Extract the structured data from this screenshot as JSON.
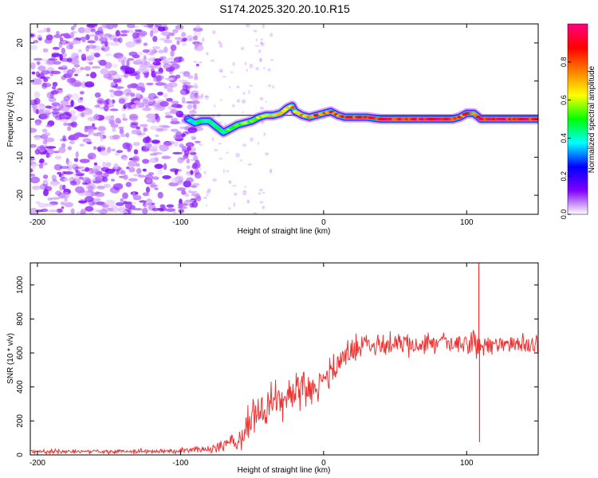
{
  "title": "S174.2025.320.20.10.R15",
  "chart_data": [
    {
      "type": "heatmap",
      "xlabel": "Height of straight line (km)",
      "ylabel": "Frequency (Hz)",
      "xlim": [
        -205,
        150
      ],
      "ylim": [
        -25,
        25
      ],
      "xticks": [
        -200,
        -100,
        0,
        100
      ],
      "yticks": [
        -20,
        -10,
        0,
        10,
        20
      ],
      "colorbar": {
        "label": "Normalized spectral amplitude",
        "range": [
          0.0,
          1.0
        ],
        "ticks": [
          0.0,
          0.2,
          0.4,
          0.6,
          0.8
        ],
        "tick_labels": [
          "0.0",
          "0.2",
          "0.4",
          "0.6",
          "0.8"
        ],
        "stops": [
          "#ffffff",
          "#8000ff",
          "#0000ff",
          "#00ffff",
          "#00ff00",
          "#ffff00",
          "#ff8000",
          "#ff0000",
          "#ff0080"
        ]
      },
      "noise_region_x": [
        -205,
        -95
      ],
      "ridge": {
        "x": [
          -95,
          -90,
          -85,
          -80,
          -75,
          -70,
          -65,
          -60,
          -55,
          -50,
          -45,
          -40,
          -35,
          -30,
          -25,
          -22,
          -20,
          -15,
          -10,
          -5,
          0,
          5,
          10,
          15,
          20,
          30,
          40,
          50,
          60,
          70,
          80,
          90,
          95,
          100,
          105,
          110,
          120,
          130,
          140,
          150
        ],
        "freq": [
          0.0,
          -1.0,
          -0.5,
          -0.5,
          -2.0,
          -3.5,
          -2.5,
          -1.5,
          -1.0,
          -0.5,
          0.5,
          1.0,
          1.0,
          1.5,
          3.0,
          3.5,
          2.0,
          1.0,
          0.5,
          1.0,
          1.5,
          2.0,
          1.0,
          0.5,
          0.5,
          0.5,
          0.0,
          0.0,
          0.0,
          0.0,
          0.0,
          0.0,
          0.5,
          1.5,
          1.5,
          0.0,
          0.0,
          0.0,
          0.0,
          0.0
        ],
        "amplitude": [
          0.35,
          0.45,
          0.5,
          0.45,
          0.45,
          0.5,
          0.55,
          0.55,
          0.6,
          0.6,
          0.65,
          0.65,
          0.7,
          0.7,
          0.75,
          0.8,
          0.75,
          0.8,
          0.8,
          0.85,
          0.85,
          0.85,
          0.85,
          0.9,
          0.9,
          0.9,
          0.95,
          0.95,
          0.95,
          0.95,
          0.95,
          0.95,
          0.9,
          0.85,
          0.85,
          0.95,
          0.95,
          0.95,
          0.95,
          0.95
        ]
      },
      "reference_line_freq": 1.0
    },
    {
      "type": "line",
      "xlabel": "Height of straight line (km)",
      "ylabel": "SNR (10 * v/v)",
      "xlim": [
        -205,
        150
      ],
      "ylim": [
        0,
        1130
      ],
      "xticks": [
        -200,
        -100,
        0,
        100
      ],
      "yticks": [
        0,
        200,
        400,
        600,
        800,
        1000
      ],
      "series": [
        {
          "name": "SNR",
          "color": "#ee3333",
          "x": [
            -205,
            -150,
            -100,
            -80,
            -70,
            -65,
            -60,
            -55,
            -50,
            -40,
            -30,
            -20,
            -10,
            0,
            10,
            20,
            30,
            40,
            50,
            60,
            70,
            80,
            90,
            100,
            105,
            108,
            109,
            110,
            115,
            120,
            130,
            140,
            150
          ],
          "mean": [
            20,
            20,
            25,
            35,
            60,
            100,
            60,
            150,
            230,
            280,
            320,
            360,
            400,
            430,
            530,
            620,
            660,
            650,
            650,
            650,
            650,
            650,
            650,
            650,
            650,
            650,
            650,
            650,
            650,
            650,
            650,
            650,
            650
          ],
          "spread": [
            15,
            15,
            20,
            25,
            45,
            50,
            60,
            120,
            130,
            140,
            140,
            130,
            110,
            110,
            110,
            100,
            90,
            80,
            80,
            80,
            80,
            80,
            80,
            90,
            110,
            130,
            130,
            110,
            90,
            80,
            80,
            80,
            80
          ],
          "spikes": [
            {
              "x": 108.5,
              "value": 1130
            },
            {
              "x": 109.0,
              "value": 75
            }
          ]
        }
      ]
    }
  ]
}
